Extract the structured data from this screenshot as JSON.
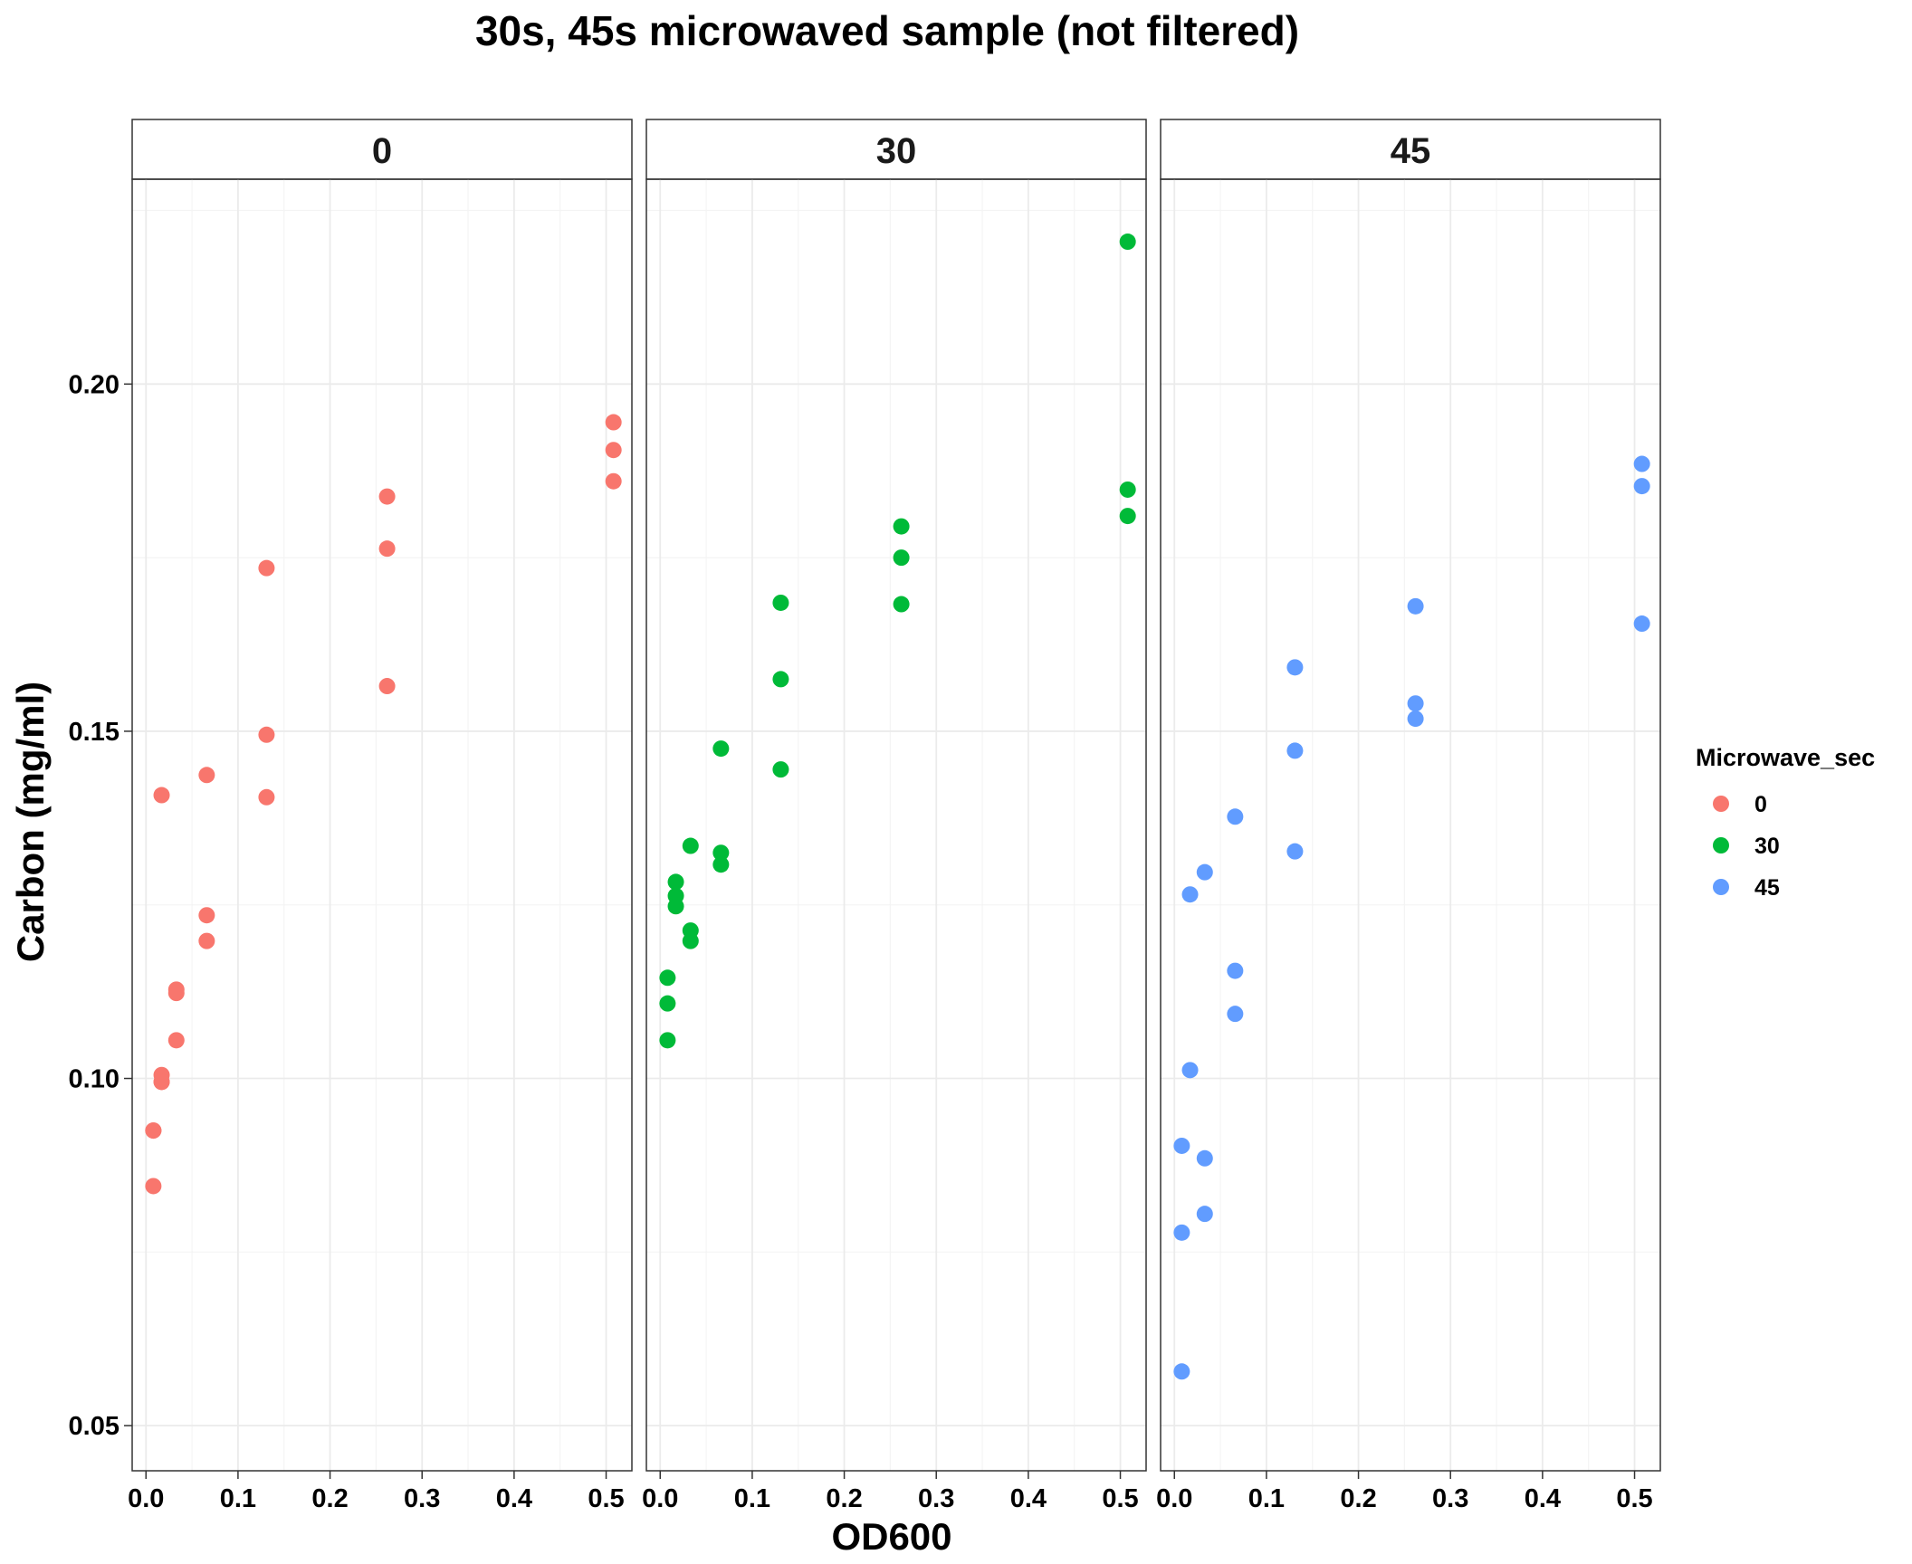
{
  "chart_data": {
    "type": "scatter",
    "title": "30s, 45s microwaved sample (not filtered)",
    "xlabel": "OD600",
    "ylabel": "Carbon (mg/ml)",
    "facet_variable": "Microwave_sec",
    "xlim": [
      -0.015,
      0.528
    ],
    "ylim": [
      0.0435,
      0.2295
    ],
    "x_ticks": [
      0.0,
      0.1,
      0.2,
      0.3,
      0.4,
      0.5
    ],
    "x_tick_labels": [
      "0.0",
      "0.1",
      "0.2",
      "0.3",
      "0.4",
      "0.5"
    ],
    "y_ticks": [
      0.05,
      0.1,
      0.15,
      0.2
    ],
    "y_tick_labels": [
      "0.05",
      "0.10",
      "0.15",
      "0.20"
    ],
    "grid": true,
    "legend": {
      "title": "Microwave_sec",
      "position": "right",
      "entries": [
        {
          "label": "0",
          "color": "#F8766D"
        },
        {
          "label": "30",
          "color": "#00BA38"
        },
        {
          "label": "45",
          "color": "#619CFF"
        }
      ]
    },
    "panels": [
      {
        "label": "0",
        "color": "#F8766D",
        "x": [
          0.508,
          0.508,
          0.508,
          0.262,
          0.262,
          0.262,
          0.131,
          0.131,
          0.131,
          0.066,
          0.066,
          0.066,
          0.033,
          0.033,
          0.033,
          0.017,
          0.017,
          0.017,
          0.017,
          0.008,
          0.008,
          0.008
        ],
        "y": [
          0.1945,
          0.1905,
          0.186,
          0.1838,
          0.1763,
          0.1565,
          0.1735,
          0.1495,
          0.1405,
          0.1437,
          0.1235,
          0.1198,
          0.1128,
          0.1123,
          0.1055,
          0.1408,
          0.1005,
          0.0995,
          0.0995,
          0.0925,
          0.0925,
          0.0845
        ]
      },
      {
        "label": "30",
        "color": "#00BA38",
        "x": [
          0.508,
          0.508,
          0.508,
          0.262,
          0.262,
          0.262,
          0.131,
          0.131,
          0.131,
          0.066,
          0.066,
          0.066,
          0.033,
          0.033,
          0.033,
          0.017,
          0.017,
          0.017,
          0.008,
          0.008,
          0.008
        ],
        "y": [
          0.2205,
          0.1848,
          0.181,
          0.1795,
          0.175,
          0.1683,
          0.1685,
          0.1575,
          0.1445,
          0.1475,
          0.1325,
          0.1308,
          0.1335,
          0.1213,
          0.1198,
          0.1283,
          0.1263,
          0.1248,
          0.1145,
          0.1108,
          0.1055
        ]
      },
      {
        "label": "45",
        "color": "#619CFF",
        "x": [
          0.508,
          0.508,
          0.508,
          0.262,
          0.262,
          0.262,
          0.131,
          0.131,
          0.131,
          0.066,
          0.066,
          0.066,
          0.033,
          0.033,
          0.033,
          0.017,
          0.017,
          0.008,
          0.008,
          0.008
        ],
        "y": [
          0.1885,
          0.1853,
          0.1655,
          0.168,
          0.154,
          0.1518,
          0.1592,
          0.1472,
          0.1327,
          0.1377,
          0.1155,
          0.1093,
          0.1297,
          0.0885,
          0.0805,
          0.1265,
          0.1012,
          0.0903,
          0.0778,
          0.0578
        ]
      }
    ]
  }
}
